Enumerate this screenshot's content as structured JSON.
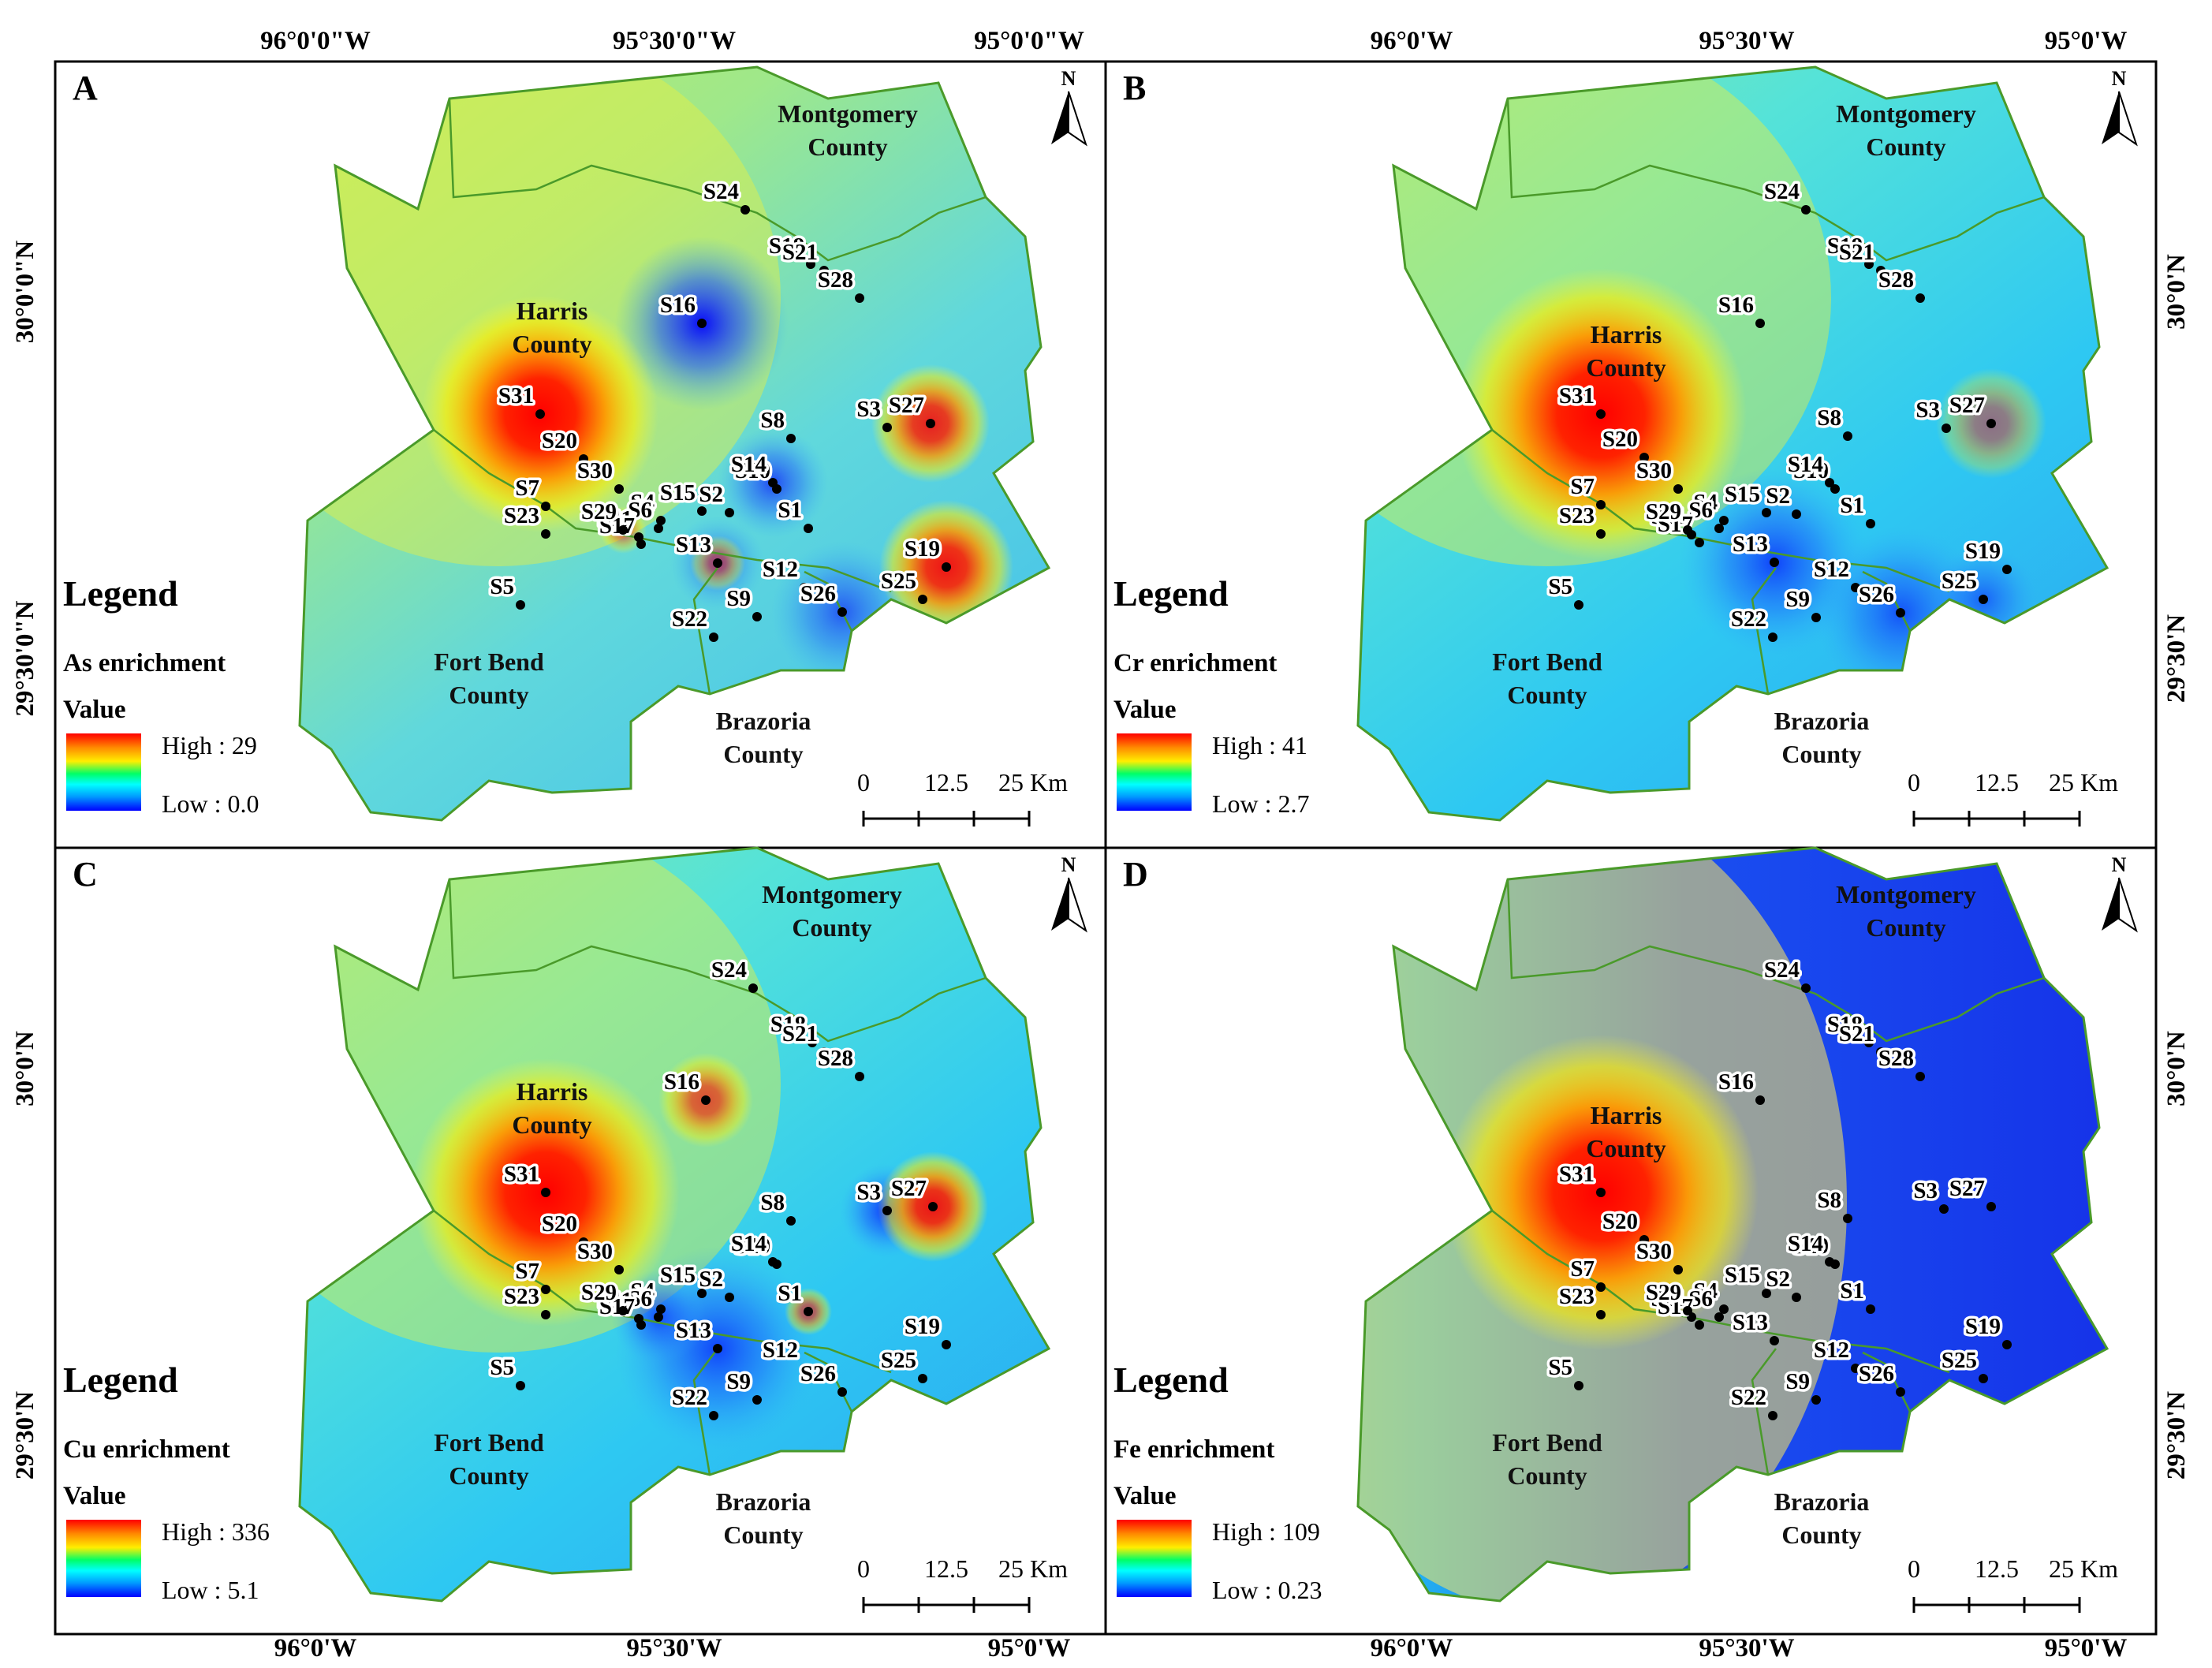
{
  "coords": {
    "top": [
      "96°0'0\"W",
      "95°30'0\"W",
      "95°0'0\"W",
      "96°0'W",
      "95°30'W",
      "95°0'W"
    ],
    "bottom": [
      "96°0'W",
      "95°30'W",
      "95°0'W",
      "96°0'W",
      "95°30'W",
      "95°0'W"
    ],
    "left": [
      "30°0'0\"N",
      "29°30'0\"N",
      "30°0'N",
      "29°30'N"
    ],
    "right": [
      "30°0'N",
      "29°30'N",
      "30°0'N",
      "29°30'N"
    ]
  },
  "counties": {
    "montgomery": [
      "Montgomery",
      "County"
    ],
    "harris": [
      "Harris",
      "County"
    ],
    "fort_bend": [
      "Fort Bend",
      "County"
    ],
    "brazoria": [
      "Brazoria",
      "County"
    ]
  },
  "north": "N",
  "legend": {
    "title": "Legend",
    "value_label": "Value"
  },
  "scalebar": [
    "0",
    "12.5",
    "25 Km"
  ],
  "panels": [
    {
      "id": "A",
      "element": "As",
      "title": "As enrichment",
      "high": "High : 29",
      "low": "Low : 0.0",
      "hot": [
        [
          "S31",
          1.0,
          150
        ],
        [
          "S19",
          0.9,
          85
        ],
        [
          "S27",
          0.85,
          75
        ],
        [
          "S13",
          0.5,
          35
        ],
        [
          "S29",
          0.5,
          30
        ]
      ],
      "cold": [
        [
          "S16",
          1.0,
          110
        ],
        [
          "S14",
          0.7,
          70
        ],
        [
          "S13",
          0.5,
          60
        ],
        [
          "S26",
          0.6,
          90
        ]
      ],
      "base": "green"
    },
    {
      "id": "B",
      "element": "Cr",
      "title": "Cr enrichment",
      "high": "High : 41",
      "low": "Low : 2.7",
      "hot": [
        [
          "S31",
          1.0,
          185
        ],
        [
          "S27",
          0.45,
          70
        ]
      ],
      "cold": [
        [
          "S13",
          0.7,
          120
        ],
        [
          "S26",
          0.6,
          110
        ],
        [
          "S25",
          0.5,
          70
        ]
      ],
      "base": "cyan"
    },
    {
      "id": "C",
      "element": "Cu",
      "title": "Cu enrichment",
      "high": "High : 336",
      "low": "Low : 5.1",
      "hot": [
        [
          "S31",
          1.0,
          170
        ],
        [
          "S27",
          0.9,
          70
        ],
        [
          "S16",
          0.65,
          60
        ],
        [
          "S1",
          0.6,
          30
        ]
      ],
      "cold": [
        [
          "S3",
          0.8,
          60
        ],
        [
          "S13",
          0.7,
          130
        ],
        [
          "S6",
          0.6,
          60
        ]
      ],
      "base": "cyan"
    },
    {
      "id": "D",
      "element": "Fe",
      "title": "Fe enrichment",
      "high": "High : 109",
      "low": "Low : 0.23",
      "hot": [
        [
          "S31",
          1.0,
          200
        ]
      ],
      "cold": [],
      "base": "blue"
    }
  ],
  "sites": {
    "A": [
      [
        "S1",
        1025,
        670
      ],
      [
        "S2",
        925,
        650
      ],
      [
        "S3",
        1125,
        542
      ],
      [
        "S4",
        838,
        660
      ],
      [
        "S5",
        660,
        767
      ],
      [
        "S6",
        835,
        670
      ],
      [
        "S7",
        692,
        642
      ],
      [
        "S8",
        1003,
        556
      ],
      [
        "S9",
        960,
        782
      ],
      [
        "S10",
        985,
        620
      ],
      [
        "S11",
        810,
        681
      ],
      [
        "S12",
        1020,
        745
      ],
      [
        "S13",
        910,
        714
      ],
      [
        "S14",
        980,
        612
      ],
      [
        "S15",
        890,
        648
      ],
      [
        "S16",
        890,
        410
      ],
      [
        "S17",
        813,
        690
      ],
      [
        "S18",
        1028,
        335
      ],
      [
        "S19",
        1200,
        719
      ],
      [
        "S20",
        740,
        582
      ],
      [
        "S21",
        1045,
        343
      ],
      [
        "S22",
        905,
        808
      ],
      [
        "S23",
        692,
        677
      ],
      [
        "S24",
        945,
        266
      ],
      [
        "S25",
        1170,
        760
      ],
      [
        "S26",
        1068,
        776
      ],
      [
        "S27",
        1180,
        537
      ],
      [
        "S28",
        1090,
        378
      ],
      [
        "S29",
        790,
        672
      ],
      [
        "S30",
        785,
        620
      ],
      [
        "S31",
        685,
        525
      ]
    ],
    "B": [
      [
        "S1",
        2372,
        664
      ],
      [
        "S2",
        2278,
        652
      ],
      [
        "S3",
        2468,
        543
      ],
      [
        "S4",
        2186,
        660
      ],
      [
        "S5",
        2002,
        767
      ],
      [
        "S6",
        2180,
        670
      ],
      [
        "S7",
        2030,
        640
      ],
      [
        "S8",
        2343,
        553
      ],
      [
        "S9",
        2303,
        783
      ],
      [
        "S10",
        2327,
        620
      ],
      [
        "S11",
        2145,
        678
      ],
      [
        "S12",
        2353,
        745
      ],
      [
        "S13",
        2250,
        713
      ],
      [
        "S14",
        2320,
        612
      ],
      [
        "S15",
        2240,
        650
      ],
      [
        "S16",
        2232,
        410
      ],
      [
        "S17",
        2155,
        688
      ],
      [
        "S18",
        2370,
        335
      ],
      [
        "S19",
        2545,
        722
      ],
      [
        "S20",
        2085,
        580
      ],
      [
        "S21",
        2385,
        343
      ],
      [
        "S22",
        2248,
        808
      ],
      [
        "S23",
        2030,
        677
      ],
      [
        "S24",
        2290,
        266
      ],
      [
        "S25",
        2515,
        760
      ],
      [
        "S26",
        2410,
        777
      ],
      [
        "S27",
        2525,
        537
      ],
      [
        "S28",
        2435,
        378
      ],
      [
        "S29",
        2140,
        672
      ],
      [
        "S30",
        2128,
        620
      ],
      [
        "S31",
        2030,
        525
      ]
    ],
    "C": [
      [
        "S1",
        1025,
        1663
      ],
      [
        "S2",
        925,
        1645
      ],
      [
        "S3",
        1125,
        1535
      ],
      [
        "S4",
        838,
        1660
      ],
      [
        "S5",
        660,
        1757
      ],
      [
        "S6",
        835,
        1670
      ],
      [
        "S7",
        692,
        1635
      ],
      [
        "S8",
        1003,
        1548
      ],
      [
        "S9",
        960,
        1775
      ],
      [
        "S10",
        985,
        1603
      ],
      [
        "S11",
        810,
        1672
      ],
      [
        "S12",
        1020,
        1735
      ],
      [
        "S13",
        910,
        1710
      ],
      [
        "S14",
        980,
        1600
      ],
      [
        "S15",
        890,
        1640
      ],
      [
        "S16",
        895,
        1395
      ],
      [
        "S17",
        813,
        1680
      ],
      [
        "S18",
        1030,
        1322
      ],
      [
        "S19",
        1200,
        1705
      ],
      [
        "S20",
        740,
        1575
      ],
      [
        "S21",
        1045,
        1334
      ],
      [
        "S22",
        905,
        1795
      ],
      [
        "S23",
        692,
        1667
      ],
      [
        "S24",
        955,
        1253
      ],
      [
        "S25",
        1170,
        1748
      ],
      [
        "S26",
        1068,
        1765
      ],
      [
        "S27",
        1183,
        1530
      ],
      [
        "S28",
        1090,
        1365
      ],
      [
        "S29",
        790,
        1662
      ],
      [
        "S30",
        785,
        1610
      ],
      [
        "S31",
        692,
        1512
      ]
    ],
    "D": [
      [
        "S1",
        2372,
        1660
      ],
      [
        "S2",
        2278,
        1645
      ],
      [
        "S3",
        2465,
        1533
      ],
      [
        "S4",
        2186,
        1660
      ],
      [
        "S5",
        2002,
        1757
      ],
      [
        "S6",
        2180,
        1670
      ],
      [
        "S7",
        2030,
        1632
      ],
      [
        "S8",
        2343,
        1545
      ],
      [
        "S9",
        2303,
        1775
      ],
      [
        "S10",
        2327,
        1603
      ],
      [
        "S11",
        2145,
        1670
      ],
      [
        "S12",
        2353,
        1735
      ],
      [
        "S13",
        2250,
        1700
      ],
      [
        "S14",
        2320,
        1600
      ],
      [
        "S15",
        2240,
        1640
      ],
      [
        "S16",
        2232,
        1395
      ],
      [
        "S17",
        2155,
        1680
      ],
      [
        "S18",
        2370,
        1322
      ],
      [
        "S19",
        2545,
        1705
      ],
      [
        "S20",
        2085,
        1572
      ],
      [
        "S21",
        2385,
        1334
      ],
      [
        "S22",
        2248,
        1795
      ],
      [
        "S23",
        2030,
        1667
      ],
      [
        "S24",
        2290,
        1253
      ],
      [
        "S25",
        2515,
        1748
      ],
      [
        "S26",
        2410,
        1765
      ],
      [
        "S27",
        2525,
        1530
      ],
      [
        "S28",
        2435,
        1365
      ],
      [
        "S29",
        2140,
        1662
      ],
      [
        "S30",
        2128,
        1610
      ],
      [
        "S31",
        2030,
        1512
      ]
    ]
  },
  "colors": {
    "frame": "#000000",
    "border": "#4a9a2a",
    "ramp": [
      "#ff0000",
      "#ff8800",
      "#ffee00",
      "#00ff66",
      "#00ffff",
      "#0099ff",
      "#0000ff"
    ]
  }
}
